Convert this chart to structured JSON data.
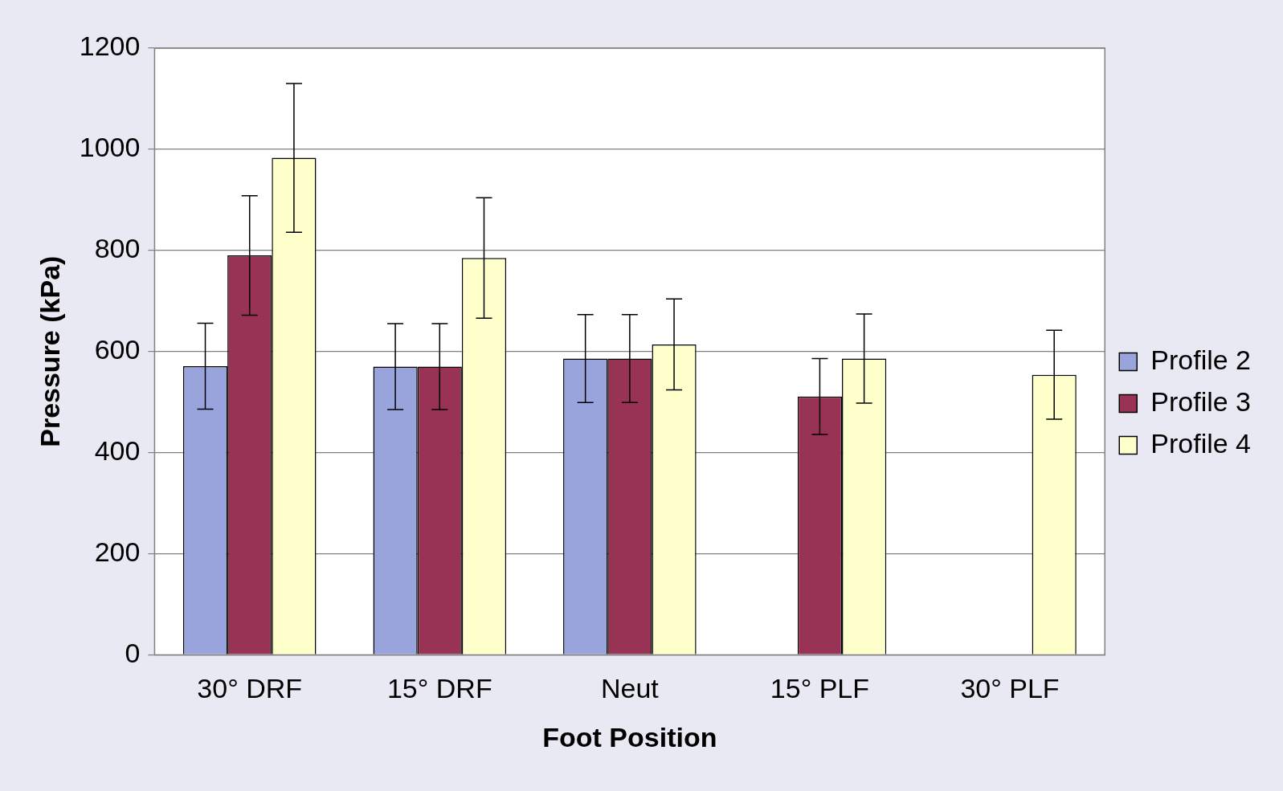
{
  "chart_data": {
    "type": "bar",
    "xlabel": "Foot Position",
    "ylabel": "Pressure (kPa)",
    "categories": [
      "30° DRF",
      "15° DRF",
      "Neut",
      "15° PLF",
      "30° PLF"
    ],
    "series": [
      {
        "name": "Profile 2",
        "color": "#9aa4dc",
        "values": [
          571,
          570,
          586,
          0,
          0
        ],
        "errors": [
          85,
          85,
          87,
          null,
          null
        ]
      },
      {
        "name": "Profile 3",
        "color": "#993355",
        "values": [
          790,
          570,
          586,
          511,
          0
        ],
        "errors": [
          118,
          85,
          87,
          75,
          null
        ]
      },
      {
        "name": "Profile 4",
        "color": "#ffffcc",
        "values": [
          983,
          785,
          614,
          586,
          554
        ],
        "errors": [
          147,
          119,
          90,
          88,
          88
        ]
      }
    ],
    "ylim": [
      0,
      1200
    ],
    "yticks": [
      0,
      200,
      400,
      600,
      800,
      1000,
      1200
    ],
    "grid": "y",
    "legend": "right"
  }
}
